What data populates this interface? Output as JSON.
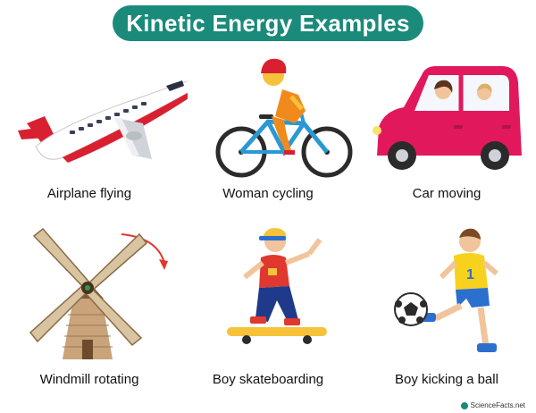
{
  "title": "Kinetic Energy Examples",
  "items": [
    {
      "caption": "Airplane flying",
      "icon": "airplane-icon"
    },
    {
      "caption": "Woman cycling",
      "icon": "cyclist-icon"
    },
    {
      "caption": "Car moving",
      "icon": "car-icon"
    },
    {
      "caption": "Windmill rotating",
      "icon": "windmill-icon"
    },
    {
      "caption": "Boy skateboarding",
      "icon": "skateboarder-icon"
    },
    {
      "caption": "Boy kicking a ball",
      "icon": "soccer-player-icon"
    }
  ],
  "logo": {
    "text": "ScienceFacts.net"
  },
  "colors": {
    "title_bg": "#1a8a7a",
    "title_text": "#ffffff",
    "caption_text": "#111111"
  }
}
